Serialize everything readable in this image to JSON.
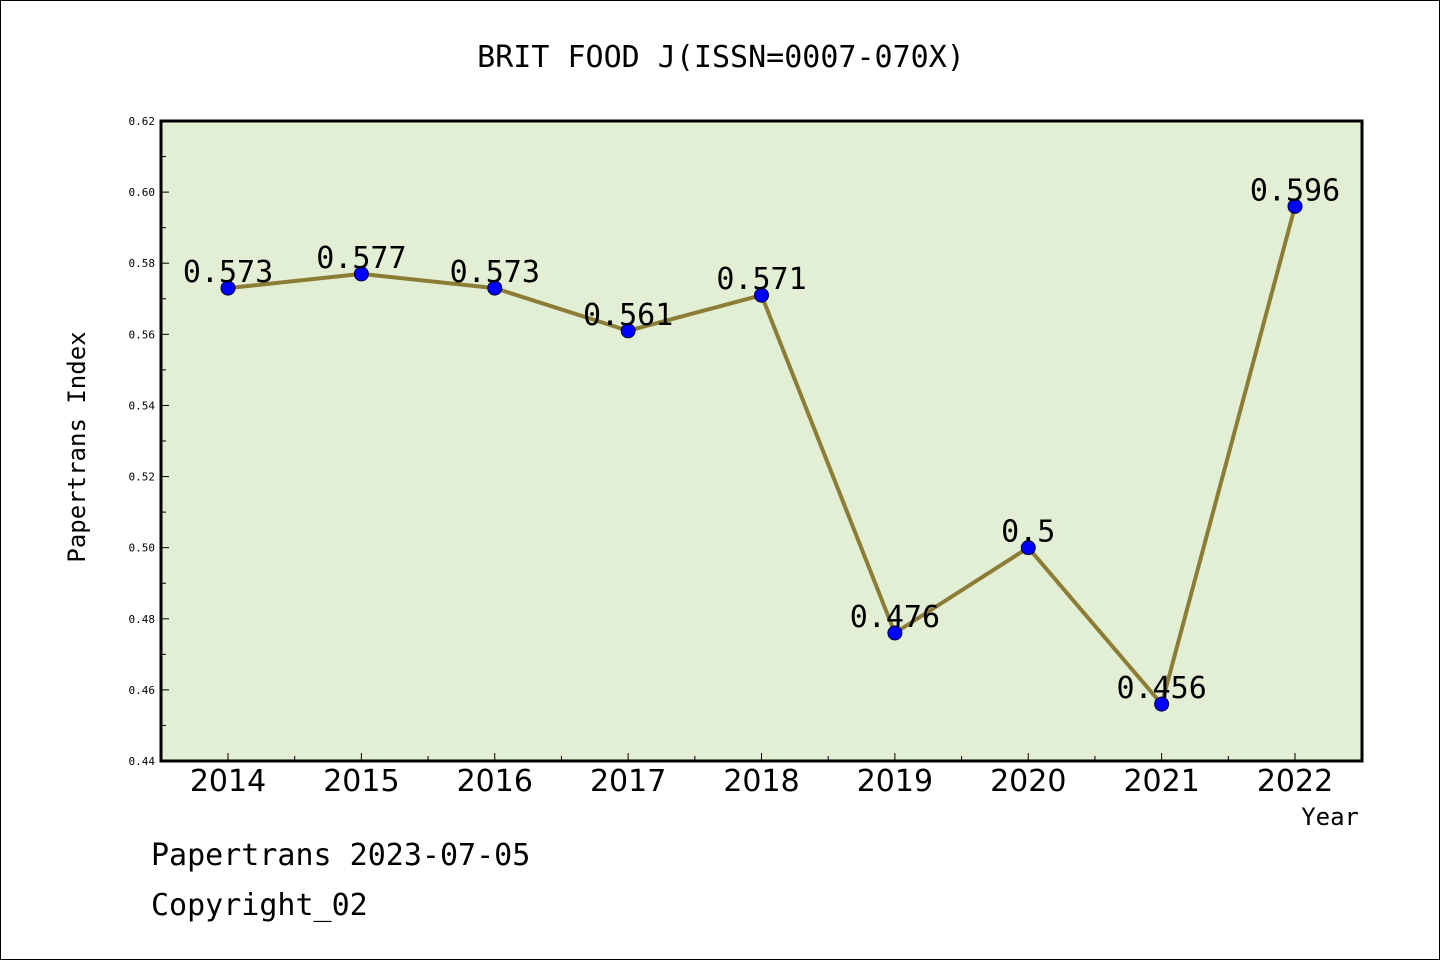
{
  "chart_data": {
    "type": "line",
    "title": "BRIT FOOD J(ISSN=0007-070X)",
    "xlabel": "Year",
    "ylabel": "Papertrans Index",
    "categories": [
      "2014",
      "2015",
      "2016",
      "2017",
      "2018",
      "2019",
      "2020",
      "2021",
      "2022"
    ],
    "values": [
      0.573,
      0.577,
      0.573,
      0.561,
      0.571,
      0.476,
      0.5,
      0.456,
      0.596
    ],
    "value_labels": [
      "0.573",
      "0.577",
      "0.573",
      "0.561",
      "0.571",
      "0.476",
      "0.5",
      "0.456",
      "0.596"
    ],
    "ylim": [
      0.44,
      0.62
    ],
    "yticks": [
      "0.44",
      "0.46",
      "0.48",
      "0.50",
      "0.52",
      "0.54",
      "0.56",
      "0.58",
      "0.60",
      "0.62"
    ],
    "grid": false,
    "colors": {
      "plot_background": "#e2efd4",
      "line": "#8b7d35",
      "marker": "#0000ff"
    }
  },
  "footer": {
    "line1": "Papertrans 2023-07-05",
    "line2": "Copyright_02"
  }
}
